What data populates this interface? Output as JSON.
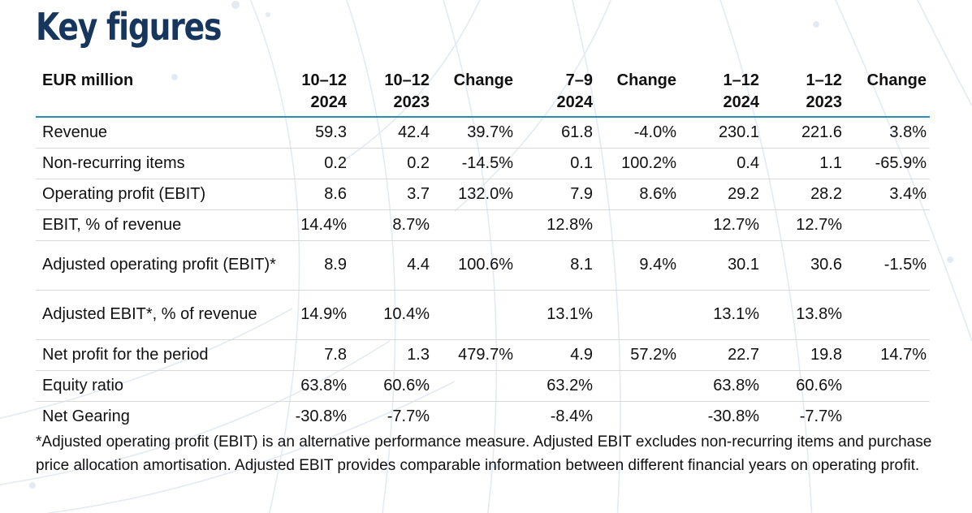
{
  "title": "Key figures",
  "table": {
    "headers": [
      {
        "l1": "EUR million",
        "l2": ""
      },
      {
        "l1": "10–12",
        "l2": "2024"
      },
      {
        "l1": "10–12",
        "l2": "2023"
      },
      {
        "l1": "Change",
        "l2": ""
      },
      {
        "l1": "7–9",
        "l2": "2024"
      },
      {
        "l1": "Change",
        "l2": ""
      },
      {
        "l1": "1–12",
        "l2": "2024"
      },
      {
        "l1": "1–12",
        "l2": "2023"
      },
      {
        "l1": "Change",
        "l2": ""
      }
    ],
    "rows": [
      {
        "label": "Revenue",
        "values": [
          "59.3",
          "42.4",
          "39.7%",
          "61.8",
          "-4.0%",
          "230.1",
          "221.6",
          "3.8%"
        ]
      },
      {
        "label": "Non-recurring items",
        "values": [
          "0.2",
          "0.2",
          "-14.5%",
          "0.1",
          "100.2%",
          "0.4",
          "1.1",
          "-65.9%"
        ]
      },
      {
        "label": "Operating profit (EBIT)",
        "values": [
          "8.6",
          "3.7",
          "132.0%",
          "7.9",
          "8.6%",
          "29.2",
          "28.2",
          "3.4%"
        ]
      },
      {
        "label": "EBIT, % of revenue",
        "values": [
          "14.4%",
          "8.7%",
          "",
          "12.8%",
          "",
          "12.7%",
          "12.7%",
          ""
        ]
      },
      {
        "label": "Adjusted operating profit (EBIT)*",
        "values": [
          "8.9",
          "4.4",
          "100.6%",
          "8.1",
          "9.4%",
          "30.1",
          "30.6",
          "-1.5%"
        ]
      },
      {
        "label": "Adjusted EBIT*, % of revenue",
        "values": [
          "14.9%",
          "10.4%",
          "",
          "13.1%",
          "",
          "13.1%",
          "13.8%",
          ""
        ]
      },
      {
        "label": "Net profit for the period",
        "values": [
          "7.8",
          "1.3",
          "479.7%",
          "4.9",
          "57.2%",
          "22.7",
          "19.8",
          "14.7%"
        ]
      },
      {
        "label": "Equity ratio",
        "values": [
          "63.8%",
          "60.6%",
          "",
          "63.2%",
          "",
          "63.8%",
          "60.6%",
          ""
        ]
      },
      {
        "label": "Net Gearing",
        "values": [
          "-30.8%",
          "-7.7%",
          "",
          "-8.4%",
          "",
          "-30.8%",
          "-7.7%",
          ""
        ]
      }
    ]
  },
  "footnote": "*Adjusted operating profit (EBIT) is an alternative performance measure. Adjusted EBIT excludes non-recurring items and purchase price allocation amortisation. Adjusted EBIT provides comparable information between different financial years on operating profit.",
  "colors": {
    "title": "#17365d",
    "header_rule": "#2e8bb8",
    "row_rule": "#d9d9d9",
    "background_lines": "#dde6f0"
  }
}
